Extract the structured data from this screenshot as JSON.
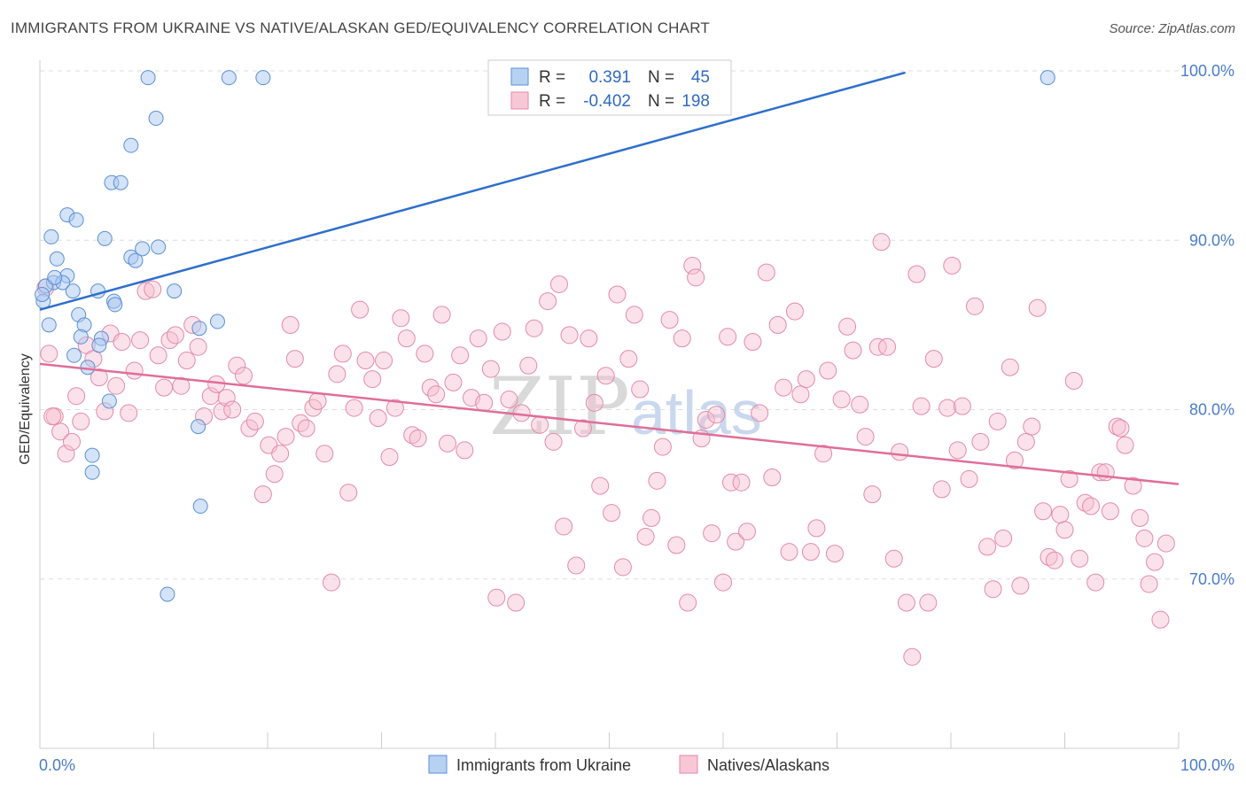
{
  "title": "IMMIGRANTS FROM UKRAINE VS NATIVE/ALASKAN GED/EQUIVALENCY CORRELATION CHART",
  "source": "Source: ZipAtlas.com",
  "watermark": {
    "zip": "ZIP",
    "atlas": "atlas"
  },
  "colors": {
    "blue_fill": "#a9c8ef",
    "blue_stroke": "#5b8fd6",
    "blue_line": "#2f6fcc",
    "pink_fill": "#f6bfd0",
    "pink_stroke": "#e48aa8",
    "pink_line": "#e06e98",
    "grid": "#dddddd",
    "tick_text": "#4a7cc7"
  },
  "legend": {
    "row1": {
      "r_label": "R =",
      "r_value": "0.391",
      "n_label": "N =",
      "n_value": "45"
    },
    "row2": {
      "r_label": "R =",
      "r_value": "-0.402",
      "n_label": "N =",
      "n_value": "198"
    }
  },
  "chart_data": {
    "type": "scatter",
    "title": "IMMIGRANTS FROM UKRAINE VS NATIVE/ALASKAN GED/EQUIVALENCY CORRELATION CHART",
    "xlabel": "",
    "ylabel": "GED/Equivalency",
    "xlim": [
      0,
      100
    ],
    "ylim": [
      60,
      100
    ],
    "x_tick_labels": [
      "0.0%",
      "100.0%"
    ],
    "y_ticks": [
      70,
      80,
      90,
      100
    ],
    "y_tick_labels": [
      "70.0%",
      "80.0%",
      "90.0%",
      "100.0%"
    ],
    "grid": true,
    "series": [
      {
        "name": "Immigrants from Ukraine",
        "R": 0.391,
        "N": 45,
        "trendline": {
          "x": [
            0,
            76
          ],
          "y": [
            85.9,
            99.9
          ]
        },
        "points": [
          [
            9.5,
            99.6
          ],
          [
            16.6,
            99.6
          ],
          [
            19.6,
            99.6
          ],
          [
            88.5,
            99.6
          ],
          [
            10.2,
            97.2
          ],
          [
            8.0,
            95.6
          ],
          [
            6.3,
            93.4
          ],
          [
            7.1,
            93.4
          ],
          [
            2.4,
            91.5
          ],
          [
            3.2,
            91.2
          ],
          [
            1.0,
            90.2
          ],
          [
            5.7,
            90.1
          ],
          [
            9.0,
            89.5
          ],
          [
            10.4,
            89.6
          ],
          [
            8.0,
            89.0
          ],
          [
            8.4,
            88.8
          ],
          [
            1.5,
            88.9
          ],
          [
            2.4,
            87.9
          ],
          [
            1.2,
            87.5
          ],
          [
            2.0,
            87.5
          ],
          [
            0.5,
            87.3
          ],
          [
            2.9,
            87.0
          ],
          [
            5.1,
            87.0
          ],
          [
            11.8,
            87.0
          ],
          [
            0.3,
            86.4
          ],
          [
            6.5,
            86.4
          ],
          [
            6.6,
            86.2
          ],
          [
            3.4,
            85.6
          ],
          [
            0.8,
            85.0
          ],
          [
            3.9,
            85.0
          ],
          [
            15.6,
            85.2
          ],
          [
            14.0,
            84.8
          ],
          [
            3.6,
            84.3
          ],
          [
            5.4,
            84.2
          ],
          [
            5.2,
            83.8
          ],
          [
            3.0,
            83.2
          ],
          [
            4.2,
            82.5
          ],
          [
            6.1,
            80.5
          ],
          [
            13.9,
            79.0
          ],
          [
            4.6,
            77.3
          ],
          [
            4.6,
            76.3
          ],
          [
            14.1,
            74.3
          ],
          [
            11.2,
            69.1
          ],
          [
            0.2,
            86.8
          ],
          [
            1.3,
            87.8
          ]
        ]
      },
      {
        "name": "Natives/Alaskans",
        "R": -0.402,
        "N": 198,
        "trendline": {
          "x": [
            0,
            100
          ],
          "y": [
            82.7,
            75.6
          ]
        },
        "points": [
          [
            0.5,
            87.2
          ],
          [
            0.8,
            83.3
          ],
          [
            1.3,
            79.6
          ],
          [
            1.8,
            78.7
          ],
          [
            2.3,
            77.4
          ],
          [
            2.8,
            78.1
          ],
          [
            3.2,
            80.8
          ],
          [
            3.6,
            79.3
          ],
          [
            4.1,
            83.8
          ],
          [
            4.7,
            83.0
          ],
          [
            5.2,
            81.9
          ],
          [
            5.7,
            79.9
          ],
          [
            6.2,
            84.5
          ],
          [
            6.7,
            81.4
          ],
          [
            7.2,
            84.0
          ],
          [
            7.8,
            79.8
          ],
          [
            8.3,
            82.3
          ],
          [
            8.8,
            84.1
          ],
          [
            9.3,
            87.0
          ],
          [
            9.9,
            87.1
          ],
          [
            10.4,
            83.2
          ],
          [
            10.9,
            81.3
          ],
          [
            11.4,
            84.1
          ],
          [
            11.9,
            84.4
          ],
          [
            12.4,
            81.4
          ],
          [
            12.9,
            82.9
          ],
          [
            13.4,
            85.0
          ],
          [
            13.9,
            83.7
          ],
          [
            14.4,
            79.6
          ],
          [
            15.0,
            80.8
          ],
          [
            15.5,
            81.5
          ],
          [
            16.0,
            79.9
          ],
          [
            16.4,
            80.7
          ],
          [
            16.9,
            80.0
          ],
          [
            17.3,
            82.6
          ],
          [
            17.9,
            82.0
          ],
          [
            18.4,
            78.9
          ],
          [
            18.9,
            79.3
          ],
          [
            19.6,
            75.0
          ],
          [
            20.1,
            77.9
          ],
          [
            20.6,
            76.2
          ],
          [
            21.1,
            77.4
          ],
          [
            21.6,
            78.4
          ],
          [
            22.0,
            85.0
          ],
          [
            22.4,
            83.0
          ],
          [
            22.9,
            79.2
          ],
          [
            23.4,
            78.9
          ],
          [
            24.0,
            80.1
          ],
          [
            24.4,
            80.5
          ],
          [
            25.0,
            77.4
          ],
          [
            25.6,
            69.8
          ],
          [
            26.1,
            82.1
          ],
          [
            26.6,
            83.3
          ],
          [
            27.1,
            75.1
          ],
          [
            27.6,
            80.1
          ],
          [
            28.1,
            85.9
          ],
          [
            28.6,
            82.9
          ],
          [
            29.2,
            81.8
          ],
          [
            29.7,
            79.5
          ],
          [
            30.2,
            82.9
          ],
          [
            30.7,
            77.2
          ],
          [
            31.2,
            80.1
          ],
          [
            31.7,
            85.4
          ],
          [
            32.2,
            84.2
          ],
          [
            32.7,
            78.5
          ],
          [
            33.2,
            78.3
          ],
          [
            33.8,
            83.3
          ],
          [
            34.3,
            81.3
          ],
          [
            34.8,
            80.9
          ],
          [
            35.3,
            85.6
          ],
          [
            35.8,
            78.0
          ],
          [
            36.3,
            81.6
          ],
          [
            36.9,
            83.2
          ],
          [
            37.3,
            77.6
          ],
          [
            37.9,
            80.7
          ],
          [
            38.5,
            84.2
          ],
          [
            39.0,
            80.4
          ],
          [
            39.6,
            82.4
          ],
          [
            40.1,
            68.9
          ],
          [
            40.6,
            84.6
          ],
          [
            41.2,
            80.6
          ],
          [
            41.8,
            68.6
          ],
          [
            42.3,
            79.8
          ],
          [
            42.9,
            82.6
          ],
          [
            43.4,
            84.8
          ],
          [
            43.9,
            79.1
          ],
          [
            44.6,
            86.4
          ],
          [
            45.1,
            78.1
          ],
          [
            45.6,
            87.4
          ],
          [
            46.0,
            73.1
          ],
          [
            46.5,
            84.4
          ],
          [
            47.1,
            70.8
          ],
          [
            47.7,
            78.9
          ],
          [
            48.2,
            84.2
          ],
          [
            48.7,
            80.4
          ],
          [
            49.2,
            75.5
          ],
          [
            49.7,
            82.0
          ],
          [
            50.2,
            73.9
          ],
          [
            50.7,
            86.8
          ],
          [
            51.2,
            70.7
          ],
          [
            51.7,
            83.0
          ],
          [
            52.2,
            85.6
          ],
          [
            52.7,
            81.2
          ],
          [
            53.2,
            72.5
          ],
          [
            53.7,
            73.6
          ],
          [
            54.2,
            75.8
          ],
          [
            54.7,
            77.8
          ],
          [
            55.3,
            85.3
          ],
          [
            55.9,
            72.0
          ],
          [
            56.4,
            84.2
          ],
          [
            56.9,
            68.6
          ],
          [
            57.3,
            88.5
          ],
          [
            57.6,
            87.8
          ],
          [
            58.1,
            78.3
          ],
          [
            58.5,
            79.4
          ],
          [
            59.0,
            72.7
          ],
          [
            59.4,
            79.7
          ],
          [
            60.0,
            69.8
          ],
          [
            60.4,
            84.3
          ],
          [
            60.7,
            75.7
          ],
          [
            61.1,
            72.2
          ],
          [
            61.6,
            75.7
          ],
          [
            62.1,
            72.8
          ],
          [
            62.6,
            84.0
          ],
          [
            63.2,
            79.8
          ],
          [
            63.8,
            88.1
          ],
          [
            64.3,
            76.0
          ],
          [
            64.8,
            85.0
          ],
          [
            65.3,
            81.3
          ],
          [
            65.8,
            71.6
          ],
          [
            66.3,
            85.8
          ],
          [
            66.8,
            80.9
          ],
          [
            67.3,
            81.8
          ],
          [
            67.7,
            71.6
          ],
          [
            68.2,
            73.0
          ],
          [
            68.8,
            77.4
          ],
          [
            69.2,
            82.3
          ],
          [
            69.8,
            71.5
          ],
          [
            70.4,
            80.6
          ],
          [
            70.9,
            84.9
          ],
          [
            71.4,
            83.5
          ],
          [
            72.0,
            80.3
          ],
          [
            72.5,
            78.4
          ],
          [
            73.1,
            75.0
          ],
          [
            73.6,
            83.7
          ],
          [
            73.9,
            89.9
          ],
          [
            74.4,
            83.7
          ],
          [
            75.0,
            71.2
          ],
          [
            75.5,
            77.5
          ],
          [
            76.1,
            68.6
          ],
          [
            76.6,
            65.4
          ],
          [
            77.0,
            88.0
          ],
          [
            77.4,
            80.2
          ],
          [
            78.0,
            68.6
          ],
          [
            78.5,
            83.0
          ],
          [
            79.2,
            75.3
          ],
          [
            79.7,
            80.1
          ],
          [
            80.1,
            88.5
          ],
          [
            80.6,
            77.6
          ],
          [
            81.0,
            80.2
          ],
          [
            81.6,
            75.9
          ],
          [
            82.1,
            86.1
          ],
          [
            82.6,
            78.1
          ],
          [
            83.2,
            71.9
          ],
          [
            83.7,
            69.4
          ],
          [
            84.1,
            79.3
          ],
          [
            84.6,
            72.4
          ],
          [
            85.2,
            82.5
          ],
          [
            85.6,
            77.0
          ],
          [
            86.1,
            69.6
          ],
          [
            86.6,
            78.1
          ],
          [
            87.1,
            79.0
          ],
          [
            87.6,
            86.0
          ],
          [
            88.1,
            74.0
          ],
          [
            88.6,
            71.3
          ],
          [
            89.1,
            71.1
          ],
          [
            89.6,
            73.8
          ],
          [
            90.0,
            72.9
          ],
          [
            90.4,
            75.9
          ],
          [
            90.8,
            81.7
          ],
          [
            91.3,
            71.2
          ],
          [
            91.8,
            74.5
          ],
          [
            92.3,
            74.3
          ],
          [
            92.7,
            69.8
          ],
          [
            93.1,
            76.3
          ],
          [
            93.6,
            76.3
          ],
          [
            94.0,
            74.0
          ],
          [
            94.6,
            79.0
          ],
          [
            94.9,
            78.9
          ],
          [
            95.3,
            77.9
          ],
          [
            96.0,
            75.5
          ],
          [
            96.6,
            73.6
          ],
          [
            97.0,
            72.4
          ],
          [
            97.4,
            69.7
          ],
          [
            97.9,
            71.0
          ],
          [
            98.4,
            67.6
          ],
          [
            98.9,
            72.1
          ],
          [
            1.1,
            79.6
          ]
        ]
      }
    ]
  },
  "bottom_legend": {
    "series1": "Immigrants from Ukraine",
    "series2": "Natives/Alaskans"
  }
}
